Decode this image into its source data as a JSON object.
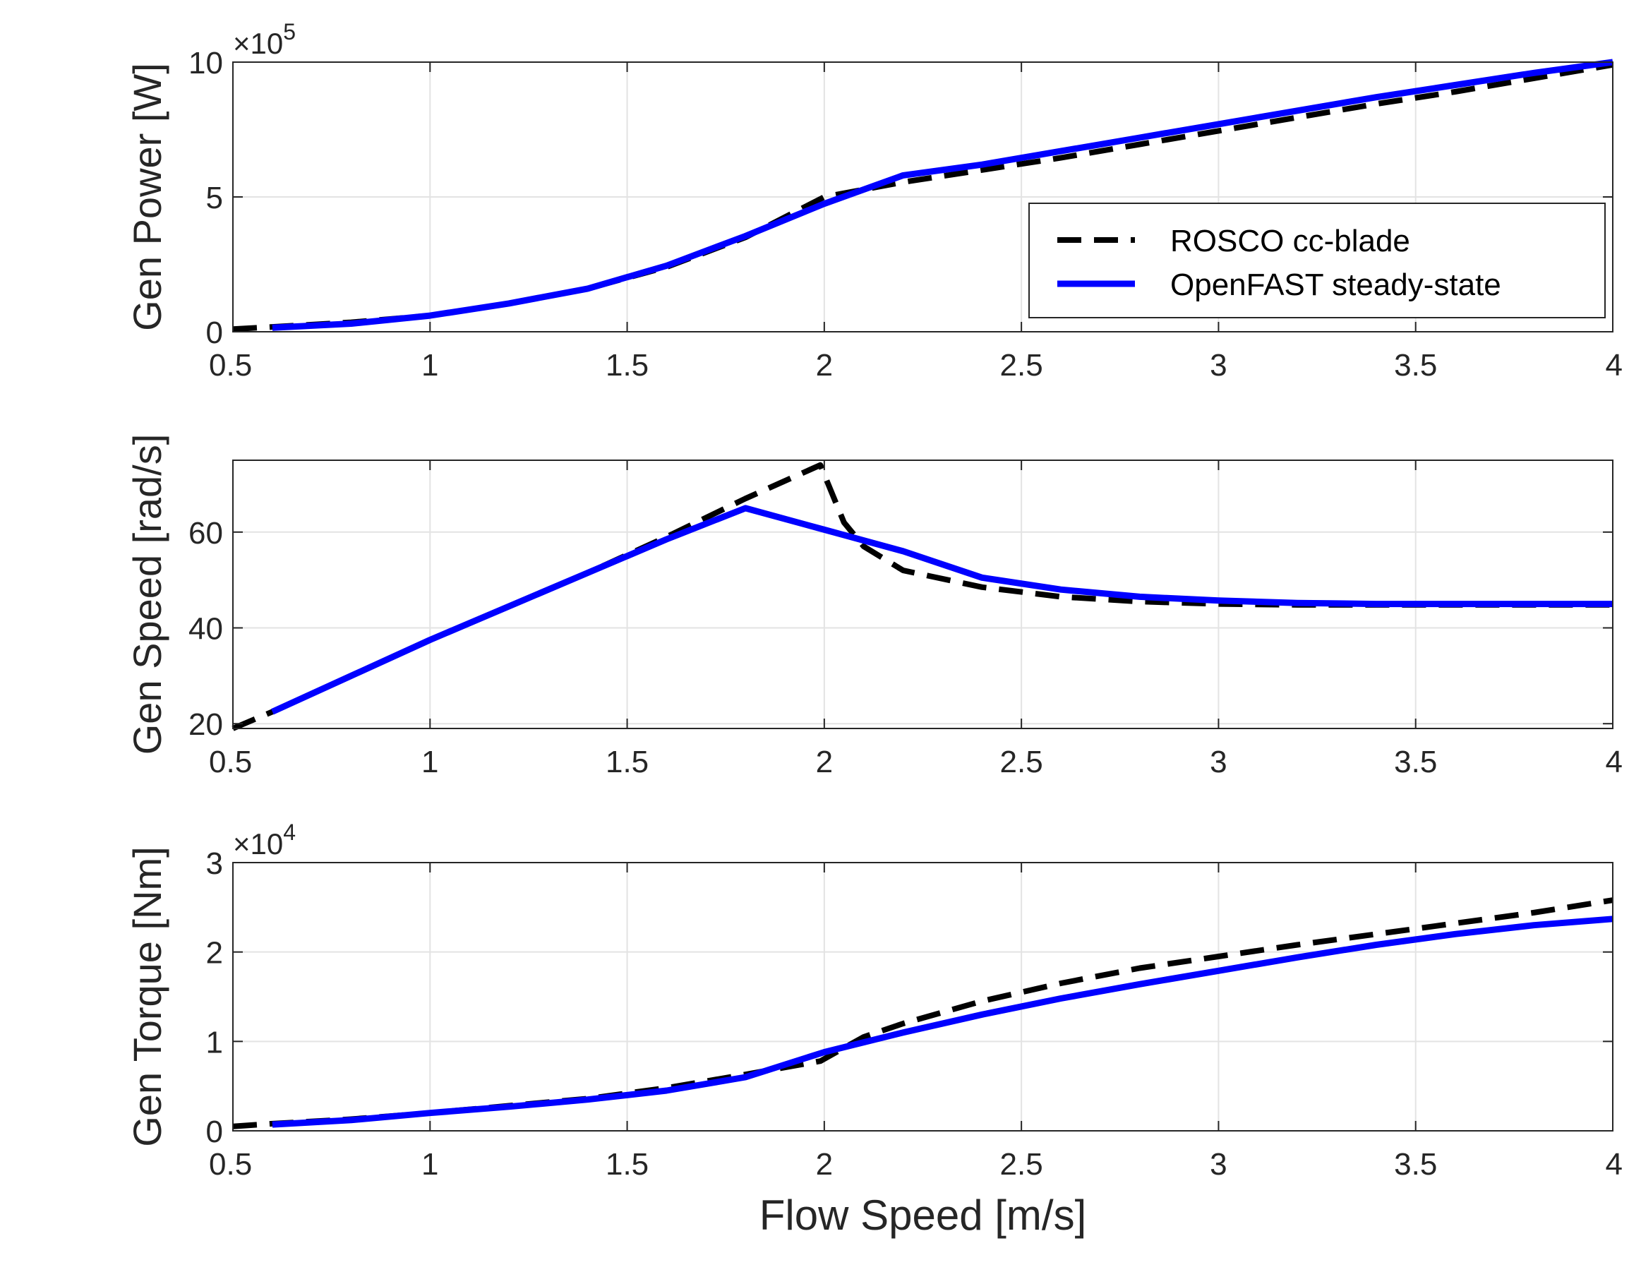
{
  "colors": {
    "rosco": "#000000",
    "openfast": "#0000ff",
    "grid": "#e3e3e3",
    "axis": "#262626"
  },
  "chart_data": [
    {
      "type": "line",
      "ylabel": "Gen Power [W]",
      "xlabel": "",
      "xlim": [
        0.5,
        4
      ],
      "ylim": [
        0,
        10
      ],
      "xticks": [
        "0.5",
        "1",
        "1.5",
        "2",
        "2.5",
        "3",
        "3.5",
        "4"
      ],
      "yticks": [
        "0",
        "5",
        "10"
      ],
      "exponent_label": "×10",
      "exponent_power": "5",
      "grid": true,
      "legend": {
        "placement": "lower-right",
        "entries": [
          "ROSCO cc-blade",
          "OpenFAST steady-state"
        ]
      },
      "series": [
        {
          "name": "ROSCO cc-blade",
          "style": "dashed",
          "x": [
            0.5,
            0.6,
            0.8,
            1.0,
            1.2,
            1.4,
            1.6,
            1.8,
            2.0,
            2.2,
            2.4,
            2.6,
            2.8,
            3.0,
            3.2,
            3.4,
            3.6,
            3.8,
            4.0
          ],
          "y": [
            0.1,
            0.18,
            0.35,
            0.6,
            1.05,
            1.6,
            2.4,
            3.5,
            5.0,
            5.55,
            6.0,
            6.45,
            6.95,
            7.45,
            7.95,
            8.45,
            8.9,
            9.4,
            9.9
          ]
        },
        {
          "name": "OpenFAST steady-state",
          "style": "solid",
          "x": [
            0.6,
            0.8,
            1.0,
            1.2,
            1.4,
            1.6,
            1.8,
            2.0,
            2.2,
            2.4,
            2.6,
            2.8,
            3.0,
            3.2,
            3.4,
            3.6,
            3.8,
            4.0
          ],
          "y": [
            0.15,
            0.3,
            0.6,
            1.05,
            1.6,
            2.45,
            3.55,
            4.75,
            5.8,
            6.2,
            6.7,
            7.2,
            7.7,
            8.2,
            8.7,
            9.15,
            9.6,
            10.0
          ]
        }
      ]
    },
    {
      "type": "line",
      "ylabel": "Gen Speed [rad/s]",
      "xlabel": "",
      "xlim": [
        0.5,
        4
      ],
      "ylim": [
        19,
        75
      ],
      "xticks": [
        "0.5",
        "1",
        "1.5",
        "2",
        "2.5",
        "3",
        "3.5",
        "4"
      ],
      "yticks": [
        "20",
        "40",
        "60"
      ],
      "grid": true,
      "series": [
        {
          "name": "ROSCO cc-blade",
          "style": "dashed",
          "x": [
            0.5,
            0.6,
            0.8,
            1.0,
            1.2,
            1.4,
            1.6,
            1.8,
            1.99,
            2.05,
            2.1,
            2.2,
            2.4,
            2.6,
            2.8,
            3.0,
            3.2,
            3.4,
            3.6,
            3.8,
            4.0
          ],
          "y": [
            19,
            22.5,
            30,
            37.5,
            44.5,
            51.5,
            59,
            67,
            74,
            62,
            57,
            52,
            48.5,
            46.5,
            45.5,
            45,
            44.8,
            44.8,
            44.8,
            44.8,
            44.8
          ]
        },
        {
          "name": "OpenFAST steady-state",
          "style": "solid",
          "x": [
            0.6,
            0.8,
            1.0,
            1.2,
            1.4,
            1.6,
            1.8,
            2.0,
            2.2,
            2.4,
            2.6,
            2.8,
            3.0,
            3.2,
            3.4,
            3.6,
            3.8,
            4.0
          ],
          "y": [
            22.5,
            30,
            37.5,
            44.5,
            51.5,
            58.5,
            65,
            60.5,
            56,
            50.5,
            48,
            46.5,
            45.7,
            45.2,
            45,
            45,
            45,
            45
          ]
        }
      ]
    },
    {
      "type": "line",
      "ylabel": "Gen Torque [Nm]",
      "xlabel": "Flow Speed [m/s]",
      "xlim": [
        0.5,
        4
      ],
      "ylim": [
        0,
        3
      ],
      "xticks": [
        "0.5",
        "1",
        "1.5",
        "2",
        "2.5",
        "3",
        "3.5",
        "4"
      ],
      "yticks": [
        "0",
        "1",
        "2",
        "3"
      ],
      "exponent_label": "×10",
      "exponent_power": "4",
      "grid": true,
      "series": [
        {
          "name": "ROSCO cc-blade",
          "style": "dashed",
          "x": [
            0.5,
            0.6,
            0.8,
            1.0,
            1.2,
            1.4,
            1.6,
            1.8,
            1.99,
            2.1,
            2.2,
            2.4,
            2.6,
            2.8,
            3.0,
            3.2,
            3.4,
            3.6,
            3.8,
            4.0
          ],
          "y": [
            0.05,
            0.08,
            0.13,
            0.2,
            0.28,
            0.36,
            0.48,
            0.63,
            0.78,
            1.05,
            1.2,
            1.45,
            1.65,
            1.82,
            1.95,
            2.08,
            2.2,
            2.32,
            2.44,
            2.58
          ]
        },
        {
          "name": "OpenFAST steady-state",
          "style": "solid",
          "x": [
            0.6,
            0.8,
            1.0,
            1.2,
            1.4,
            1.6,
            1.8,
            2.0,
            2.2,
            2.4,
            2.6,
            2.8,
            3.0,
            3.2,
            3.4,
            3.6,
            3.8,
            4.0
          ],
          "y": [
            0.07,
            0.12,
            0.2,
            0.27,
            0.35,
            0.45,
            0.6,
            0.88,
            1.1,
            1.3,
            1.48,
            1.64,
            1.79,
            1.94,
            2.08,
            2.2,
            2.3,
            2.37
          ]
        }
      ]
    }
  ]
}
